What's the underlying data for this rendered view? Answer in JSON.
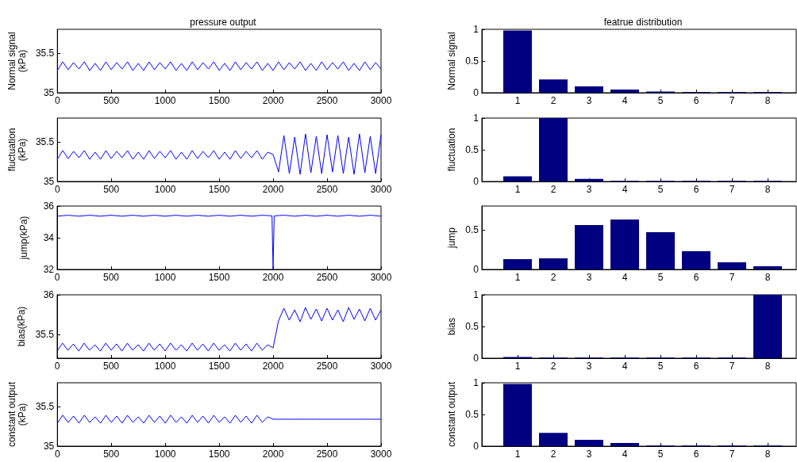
{
  "chart_data": [
    {
      "type": "line",
      "title": "pressure output",
      "ylabel": "Normal signal (kPa)",
      "xlim": [
        0,
        3000
      ],
      "xticks": [
        0,
        500,
        1000,
        1500,
        2000,
        2500,
        3000
      ],
      "ylim": [
        35,
        35.8
      ],
      "yticks": [
        35,
        35.5
      ],
      "marker": "none",
      "x": [
        0,
        50,
        100,
        150,
        200,
        250,
        300,
        350,
        400,
        450,
        500,
        550,
        600,
        650,
        700,
        750,
        800,
        850,
        900,
        950,
        1000,
        1050,
        1100,
        1150,
        1200,
        1250,
        1300,
        1350,
        1400,
        1450,
        1500,
        1550,
        1600,
        1650,
        1700,
        1750,
        1800,
        1850,
        1900,
        1950,
        2000,
        2050,
        2100,
        2150,
        2200,
        2250,
        2300,
        2350,
        2400,
        2450,
        2500,
        2550,
        2600,
        2650,
        2700,
        2750,
        2800,
        2850,
        2900,
        2950,
        3000
      ],
      "series": [
        {
          "color": "#0000ff",
          "values": [
            35.28,
            35.39,
            35.29,
            35.38,
            35.3,
            35.39,
            35.28,
            35.37,
            35.28,
            35.39,
            35.29,
            35.38,
            35.3,
            35.39,
            35.28,
            35.37,
            35.28,
            35.39,
            35.29,
            35.38,
            35.3,
            35.39,
            35.28,
            35.37,
            35.28,
            35.39,
            35.29,
            35.38,
            35.3,
            35.39,
            35.28,
            35.37,
            35.28,
            35.39,
            35.29,
            35.38,
            35.3,
            35.39,
            35.28,
            35.37,
            35.28,
            35.39,
            35.29,
            35.38,
            35.3,
            35.39,
            35.28,
            35.37,
            35.28,
            35.39,
            35.29,
            35.38,
            35.3,
            35.39,
            35.28,
            35.37,
            35.28,
            35.39,
            35.29,
            35.38,
            35.3
          ]
        }
      ]
    },
    {
      "type": "bar",
      "title": "featrue distribution",
      "ylabel": "Normal signal",
      "x": [
        1,
        2,
        3,
        4,
        5,
        6,
        7,
        8
      ],
      "xlim": [
        0,
        8.8
      ],
      "xticks": [
        1,
        2,
        3,
        4,
        5,
        6,
        7,
        8
      ],
      "ylim": [
        0,
        1
      ],
      "yticks": [
        0,
        0.5,
        1
      ],
      "series": [
        {
          "color": "#000080",
          "values": [
            0.98,
            0.21,
            0.1,
            0.05,
            0.02,
            0.01,
            0.01,
            0.01
          ]
        }
      ]
    },
    {
      "type": "line",
      "ylabel": "fluctuation (kPa)",
      "xlim": [
        0,
        3000
      ],
      "xticks": [
        0,
        500,
        1000,
        1500,
        2000,
        2500,
        3000
      ],
      "ylim": [
        35,
        35.8
      ],
      "yticks": [
        35,
        35.5
      ],
      "marker": "none",
      "x": [
        0,
        50,
        100,
        150,
        200,
        250,
        300,
        350,
        400,
        450,
        500,
        550,
        600,
        650,
        700,
        750,
        800,
        850,
        900,
        950,
        1000,
        1050,
        1100,
        1150,
        1200,
        1250,
        1300,
        1350,
        1400,
        1450,
        1500,
        1550,
        1600,
        1650,
        1700,
        1750,
        1800,
        1850,
        1900,
        1950,
        2000,
        2050,
        2100,
        2150,
        2200,
        2250,
        2300,
        2350,
        2400,
        2450,
        2500,
        2550,
        2600,
        2650,
        2700,
        2750,
        2800,
        2850,
        2900,
        2950,
        3000
      ],
      "series": [
        {
          "color": "#0000ff",
          "values": [
            35.28,
            35.39,
            35.29,
            35.38,
            35.3,
            35.39,
            35.28,
            35.37,
            35.28,
            35.39,
            35.29,
            35.38,
            35.3,
            35.39,
            35.28,
            35.37,
            35.28,
            35.39,
            35.29,
            35.38,
            35.3,
            35.39,
            35.28,
            35.37,
            35.28,
            35.39,
            35.29,
            35.38,
            35.3,
            35.39,
            35.28,
            35.37,
            35.28,
            35.39,
            35.29,
            35.38,
            35.3,
            35.39,
            35.28,
            35.37,
            35.34,
            35.12,
            35.58,
            35.1,
            35.56,
            35.09,
            35.6,
            35.11,
            35.57,
            35.1,
            35.59,
            35.12,
            35.58,
            35.1,
            35.56,
            35.09,
            35.6,
            35.11,
            35.57,
            35.1,
            35.59
          ]
        }
      ]
    },
    {
      "type": "bar",
      "ylabel": "fluctuation",
      "x": [
        1,
        2,
        3,
        4,
        5,
        6,
        7,
        8
      ],
      "xlim": [
        0,
        8.8
      ],
      "xticks": [
        1,
        2,
        3,
        4,
        5,
        6,
        7,
        8
      ],
      "ylim": [
        0,
        1
      ],
      "yticks": [
        0,
        0.5,
        1
      ],
      "series": [
        {
          "color": "#000080",
          "values": [
            0.08,
            1,
            0.04,
            0.01,
            0.01,
            0.01,
            0.01,
            0.01
          ]
        }
      ]
    },
    {
      "type": "line",
      "ylabel": "jump(kPa)",
      "xlim": [
        0,
        3000
      ],
      "xticks": [
        0,
        500,
        1000,
        1500,
        2000,
        2500,
        3000
      ],
      "ylim": [
        32,
        36
      ],
      "yticks": [
        32,
        34,
        36
      ],
      "marker": "none",
      "x": [
        0,
        100,
        200,
        300,
        400,
        500,
        600,
        700,
        800,
        900,
        1000,
        1100,
        1200,
        1300,
        1400,
        1500,
        1600,
        1700,
        1800,
        1900,
        1990,
        2000,
        2010,
        2100,
        2200,
        2300,
        2400,
        2500,
        2600,
        2700,
        2800,
        2900,
        3000
      ],
      "series": [
        {
          "color": "#0000ff",
          "values": [
            35.36,
            35.42,
            35.36,
            35.42,
            35.36,
            35.42,
            35.36,
            35.42,
            35.36,
            35.42,
            35.36,
            35.42,
            35.36,
            35.42,
            35.36,
            35.42,
            35.36,
            35.42,
            35.36,
            35.42,
            35.38,
            32,
            35.38,
            35.42,
            35.36,
            35.42,
            35.36,
            35.42,
            35.36,
            35.42,
            35.36,
            35.42,
            35.36
          ]
        }
      ]
    },
    {
      "type": "bar",
      "ylabel": "jump",
      "x": [
        1,
        2,
        3,
        4,
        5,
        6,
        7,
        8
      ],
      "xlim": [
        0,
        8.8
      ],
      "xticks": [
        1,
        2,
        3,
        4,
        5,
        6,
        7,
        8
      ],
      "ylim": [
        0,
        0.8
      ],
      "yticks": [
        0,
        0.5
      ],
      "series": [
        {
          "color": "#000080",
          "values": [
            0.13,
            0.14,
            0.56,
            0.63,
            0.47,
            0.23,
            0.09,
            0.04
          ]
        }
      ]
    },
    {
      "type": "line",
      "ylabel": "bias(kPa)",
      "xlim": [
        0,
        3000
      ],
      "xticks": [
        0,
        500,
        1000,
        1500,
        2000,
        2500,
        3000
      ],
      "ylim": [
        35.2,
        36
      ],
      "yticks": [
        35.5,
        36
      ],
      "marker": "none",
      "x": [
        0,
        50,
        100,
        150,
        200,
        250,
        300,
        350,
        400,
        450,
        500,
        550,
        600,
        650,
        700,
        750,
        800,
        850,
        900,
        950,
        1000,
        1050,
        1100,
        1150,
        1200,
        1250,
        1300,
        1350,
        1400,
        1450,
        1500,
        1550,
        1600,
        1650,
        1700,
        1750,
        1800,
        1850,
        1900,
        1950,
        2000,
        2050,
        2100,
        2150,
        2200,
        2250,
        2300,
        2350,
        2400,
        2450,
        2500,
        2550,
        2600,
        2650,
        2700,
        2750,
        2800,
        2850,
        2900,
        2950,
        3000
      ],
      "series": [
        {
          "color": "#0000ff",
          "values": [
            35.29,
            35.39,
            35.3,
            35.38,
            35.29,
            35.39,
            35.3,
            35.37,
            35.29,
            35.39,
            35.3,
            35.38,
            35.29,
            35.39,
            35.3,
            35.37,
            35.29,
            35.39,
            35.3,
            35.38,
            35.29,
            35.39,
            35.3,
            35.37,
            35.29,
            35.39,
            35.3,
            35.38,
            35.29,
            35.39,
            35.3,
            35.37,
            35.29,
            35.39,
            35.3,
            35.38,
            35.29,
            35.39,
            35.3,
            35.37,
            35.33,
            35.67,
            35.83,
            35.68,
            35.81,
            35.66,
            35.84,
            35.69,
            35.82,
            35.67,
            35.83,
            35.68,
            35.81,
            35.66,
            35.84,
            35.69,
            35.82,
            35.67,
            35.83,
            35.68,
            35.81
          ]
        }
      ]
    },
    {
      "type": "bar",
      "ylabel": "bias",
      "x": [
        1,
        2,
        3,
        4,
        5,
        6,
        7,
        8
      ],
      "xlim": [
        0,
        8.8
      ],
      "xticks": [
        1,
        2,
        3,
        4,
        5,
        6,
        7,
        8
      ],
      "ylim": [
        0,
        1
      ],
      "yticks": [
        0,
        0.5,
        1
      ],
      "series": [
        {
          "color": "#000080",
          "values": [
            0.02,
            0.01,
            0.01,
            0.01,
            0.01,
            0.01,
            0.01,
            1
          ]
        }
      ]
    },
    {
      "type": "line",
      "ylabel": "constant output (kPa)",
      "xlim": [
        0,
        3000
      ],
      "xticks": [
        0,
        500,
        1000,
        1500,
        2000,
        2500,
        3000
      ],
      "ylim": [
        35,
        35.8
      ],
      "yticks": [
        35,
        35.5
      ],
      "marker": "none",
      "x": [
        0,
        50,
        100,
        150,
        200,
        250,
        300,
        350,
        400,
        450,
        500,
        550,
        600,
        650,
        700,
        750,
        800,
        850,
        900,
        950,
        1000,
        1050,
        1100,
        1150,
        1200,
        1250,
        1300,
        1350,
        1400,
        1450,
        1500,
        1550,
        1600,
        1650,
        1700,
        1750,
        1800,
        1850,
        1900,
        1950,
        2000,
        2050,
        2100,
        2150,
        2200,
        2250,
        2300,
        2350,
        2400,
        2450,
        2500,
        2550,
        2600,
        2650,
        2700,
        2750,
        2800,
        2850,
        2900,
        2950,
        3000
      ],
      "series": [
        {
          "color": "#0000ff",
          "values": [
            35.29,
            35.39,
            35.3,
            35.38,
            35.29,
            35.39,
            35.3,
            35.37,
            35.29,
            35.39,
            35.3,
            35.38,
            35.29,
            35.39,
            35.3,
            35.37,
            35.29,
            35.39,
            35.3,
            35.38,
            35.29,
            35.39,
            35.3,
            35.37,
            35.29,
            35.39,
            35.3,
            35.38,
            35.29,
            35.39,
            35.3,
            35.37,
            35.29,
            35.39,
            35.3,
            35.38,
            35.29,
            35.39,
            35.3,
            35.37,
            35.34,
            35.34,
            35.34,
            35.34,
            35.34,
            35.34,
            35.34,
            35.34,
            35.34,
            35.34,
            35.34,
            35.34,
            35.34,
            35.34,
            35.34,
            35.34,
            35.34,
            35.34,
            35.34,
            35.34,
            35.34
          ]
        }
      ]
    },
    {
      "type": "bar",
      "ylabel": "constant output",
      "x": [
        1,
        2,
        3,
        4,
        5,
        6,
        7,
        8
      ],
      "xlim": [
        0,
        8.8
      ],
      "xticks": [
        1,
        2,
        3,
        4,
        5,
        6,
        7,
        8
      ],
      "ylim": [
        0,
        1
      ],
      "yticks": [
        0,
        0.5,
        1
      ],
      "series": [
        {
          "color": "#000080",
          "values": [
            0.98,
            0.21,
            0.1,
            0.05,
            0.01,
            0.01,
            0.01,
            0.01
          ]
        }
      ]
    }
  ]
}
